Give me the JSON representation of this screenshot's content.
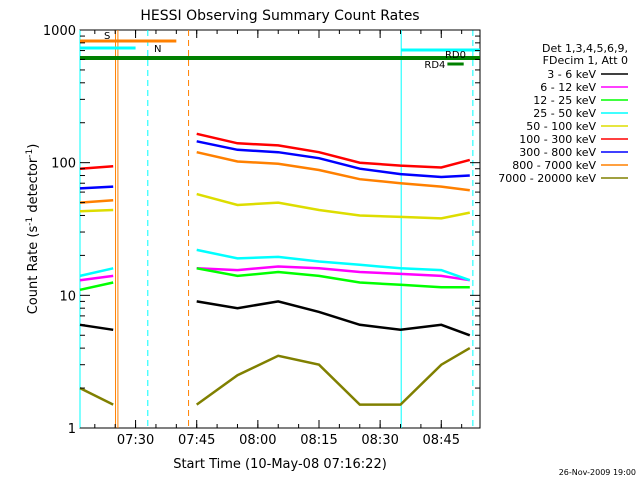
{
  "chart_data": {
    "type": "line",
    "title": "HESSI Observing Summary Count Rates",
    "xlabel": "Start Time (10-May-08 07:16:22)",
    "ylabel": "Count Rate (s⁻¹ detector⁻¹)",
    "ylabel_parts": {
      "pre": "Count Rate (s",
      "sup1": "-1",
      "mid": " detector",
      "sup2": "-1",
      "post": ")"
    },
    "yscale": "log",
    "ylim": [
      1,
      1000
    ],
    "y_ticks": [
      "1",
      "10",
      "100",
      "1000"
    ],
    "xlim": [
      "07:16:22",
      "08:54:30"
    ],
    "x_ticks": [
      "07:30",
      "07:45",
      "08:00",
      "08:15",
      "08:30",
      "08:45"
    ],
    "legend": {
      "placement": "right",
      "header": [
        "Det 1,3,4,5,6,9,",
        "FDecim 1, Att 0"
      ]
    },
    "series": [
      {
        "name": "3 - 6 keV",
        "color": "#000000",
        "x": [
          "07:16:22",
          "07:24:30",
          "07:39:40",
          "07:45:00",
          "07:55:00",
          "08:05:00",
          "08:15:00",
          "08:25:00",
          "08:35:00",
          "08:45:00",
          "08:52:00"
        ],
        "y": [
          6.0,
          5.5,
          null,
          9.0,
          8.0,
          9.0,
          7.5,
          6.0,
          5.5,
          6.0,
          5.0
        ]
      },
      {
        "name": "6 - 12 keV",
        "color": "#ff00ff",
        "x": [
          "07:16:22",
          "07:24:30",
          "07:39:40",
          "07:45:00",
          "07:55:00",
          "08:05:00",
          "08:15:00",
          "08:25:00",
          "08:35:00",
          "08:45:00",
          "08:52:00"
        ],
        "y": [
          13.0,
          14.0,
          null,
          16.0,
          15.5,
          16.5,
          16.0,
          15.0,
          14.5,
          14.0,
          13.0
        ]
      },
      {
        "name": "12 - 25 keV",
        "color": "#00ff00",
        "x": [
          "07:16:22",
          "07:24:30",
          "07:39:40",
          "07:45:00",
          "07:55:00",
          "08:05:00",
          "08:15:00",
          "08:25:00",
          "08:35:00",
          "08:45:00",
          "08:52:00"
        ],
        "y": [
          11.0,
          12.5,
          null,
          16.0,
          14.0,
          15.0,
          14.0,
          12.5,
          12.0,
          11.5,
          11.5
        ]
      },
      {
        "name": "25 - 50 keV",
        "color": "#00ffff",
        "x": [
          "07:16:22",
          "07:24:30",
          "07:39:40",
          "07:45:00",
          "07:55:00",
          "08:05:00",
          "08:15:00",
          "08:25:00",
          "08:35:00",
          "08:45:00",
          "08:52:00"
        ],
        "y": [
          14.0,
          16.0,
          null,
          22.0,
          19.0,
          19.5,
          18.0,
          17.0,
          16.0,
          15.5,
          13.0
        ]
      },
      {
        "name": "50 - 100 keV",
        "color": "#dddd00",
        "x": [
          "07:16:22",
          "07:24:30",
          "07:39:40",
          "07:45:00",
          "07:55:00",
          "08:05:00",
          "08:15:00",
          "08:25:00",
          "08:35:00",
          "08:45:00",
          "08:52:00"
        ],
        "y": [
          43.0,
          44.0,
          null,
          58.0,
          48.0,
          50.0,
          44.0,
          40.0,
          39.0,
          38.0,
          42.0
        ]
      },
      {
        "name": "100 - 300 keV",
        "color": "#ff0000",
        "x": [
          "07:16:22",
          "07:24:30",
          "07:39:40",
          "07:45:00",
          "07:55:00",
          "08:05:00",
          "08:15:00",
          "08:25:00",
          "08:35:00",
          "08:45:00",
          "08:52:00"
        ],
        "y": [
          90.0,
          94.0,
          null,
          165.0,
          140.0,
          135.0,
          120.0,
          100.0,
          95.0,
          92.0,
          105.0
        ]
      },
      {
        "name": "300 - 800 keV",
        "color": "#0000ff",
        "x": [
          "07:16:22",
          "07:24:30",
          "07:39:40",
          "07:45:00",
          "07:55:00",
          "08:05:00",
          "08:15:00",
          "08:25:00",
          "08:35:00",
          "08:45:00",
          "08:52:00"
        ],
        "y": [
          64.0,
          66.0,
          null,
          145.0,
          125.0,
          120.0,
          108.0,
          90.0,
          82.0,
          78.0,
          80.0
        ]
      },
      {
        "name": "800 - 7000 keV",
        "color": "#ff8000",
        "x": [
          "07:16:22",
          "07:24:30",
          "07:39:40",
          "07:45:00",
          "07:55:00",
          "08:05:00",
          "08:15:00",
          "08:25:00",
          "08:35:00",
          "08:45:00",
          "08:52:00"
        ],
        "y": [
          50.0,
          52.0,
          null,
          120.0,
          102.0,
          98.0,
          88.0,
          75.0,
          70.0,
          66.0,
          62.0
        ]
      },
      {
        "name": "7000 - 20000 keV",
        "color": "#808000",
        "x": [
          "07:16:22",
          "07:24:30",
          "07:39:40",
          "07:45:00",
          "07:55:00",
          "08:05:00",
          "08:15:00",
          "08:25:00",
          "08:35:00",
          "08:45:00",
          "08:52:00"
        ],
        "y": [
          2.0,
          1.5,
          null,
          1.5,
          2.5,
          3.5,
          3.0,
          1.5,
          1.5,
          3.0,
          4.0
        ]
      }
    ],
    "flags": [
      {
        "label": "S",
        "color": "#ff8000",
        "start": "07:16:22",
        "end": "07:40:00"
      },
      {
        "label": "N",
        "color": "#00ffff",
        "start": "07:16:22",
        "end": "07:30:00"
      },
      {
        "label": "RD0",
        "color": "#00ffff",
        "start": "08:35:10",
        "end": "08:54:30"
      },
      {
        "label": "RD4",
        "color": "#008000",
        "start": "08:46:30",
        "end": "08:50:30"
      }
    ],
    "saa_bar": {
      "color": "#008000",
      "start": "07:16:22",
      "end": "08:54:30"
    },
    "markers": [
      {
        "time": "07:16:22",
        "color": "#00ffff",
        "style": "solid"
      },
      {
        "time": "07:25:05",
        "color": "#ff8000",
        "style": "solid"
      },
      {
        "time": "07:25:40",
        "color": "#ff8000",
        "style": "solid"
      },
      {
        "time": "07:33:00",
        "color": "#00ffff",
        "style": "dashed"
      },
      {
        "time": "07:43:00",
        "color": "#ff8000",
        "style": "dashed"
      },
      {
        "time": "08:35:10",
        "color": "#00ffff",
        "style": "solid"
      },
      {
        "time": "08:52:45",
        "color": "#00ffff",
        "style": "dashed"
      }
    ]
  },
  "footer": {
    "timestamp": "26-Nov-2009 19:00"
  }
}
